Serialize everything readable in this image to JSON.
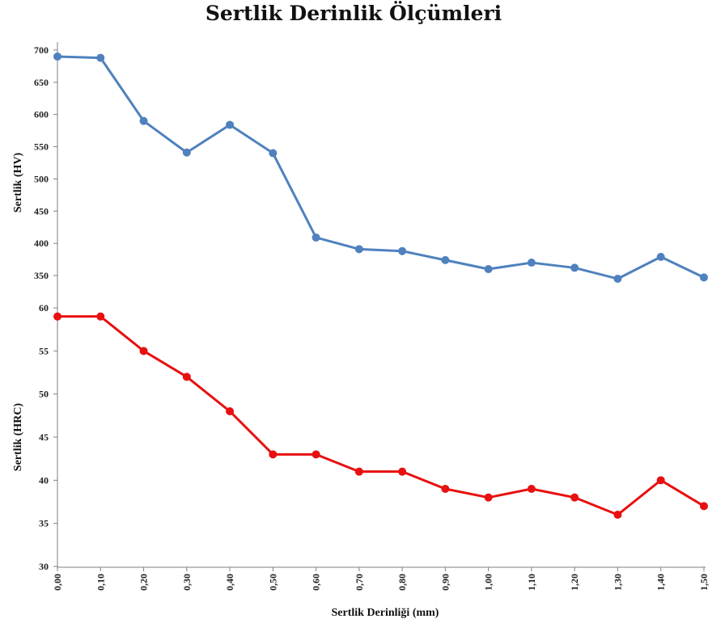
{
  "chart_data": {
    "type": "line",
    "title": "Sertlik Derinlik Ölçümleri",
    "xlabel": "Sertlik Derinliği (mm)",
    "x_tick_labels": [
      "0,00",
      "0,10",
      "0,20",
      "0,30",
      "0,40",
      "0,50",
      "0,60",
      "0,70",
      "0,80",
      "0,90",
      "1,00",
      "1,10",
      "1,20",
      "1,30",
      "1,40",
      "1,50"
    ],
    "x": [
      0.0,
      0.1,
      0.2,
      0.3,
      0.4,
      0.5,
      0.6,
      0.7,
      0.8,
      0.9,
      1.0,
      1.1,
      1.2,
      1.3,
      1.4,
      1.5
    ],
    "panels": [
      {
        "ylabel": "Sertlik (HV)",
        "ylim": [
          350,
          700
        ],
        "yticks": [
          350,
          400,
          450,
          500,
          550,
          600,
          650,
          700
        ],
        "series": [
          {
            "color": "#4f81bd",
            "values": [
              690,
              688,
              590,
              541,
              584,
              540,
              409,
              391,
              388,
              374,
              360,
              370,
              362,
              345,
              379,
              347
            ]
          }
        ]
      },
      {
        "ylabel": "Sertlik (HRC)",
        "ylim": [
          30,
          60
        ],
        "yticks": [
          30,
          35,
          40,
          45,
          50,
          55,
          60
        ],
        "series": [
          {
            "color": "#e81010",
            "values": [
              59,
              59,
              55,
              52,
              48,
              43,
              43,
              41,
              41,
              39,
              38,
              39,
              38,
              36,
              40,
              37
            ]
          }
        ]
      }
    ],
    "grid": false,
    "legend": "none"
  }
}
